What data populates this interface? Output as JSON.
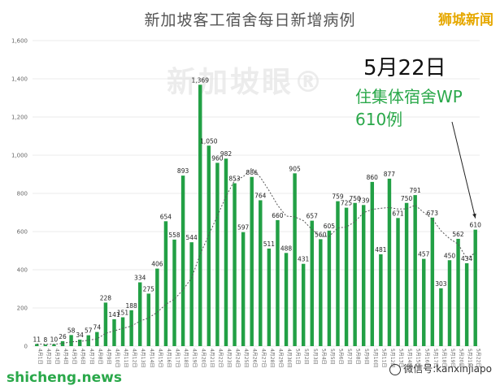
{
  "title": "新加坡客工宿舍每日新增病例",
  "brand": "狮城新闻",
  "watermark": "新加坡眼®",
  "annotation": {
    "date": "5月22日",
    "line1": "住集体宿舍WP",
    "line2": "610例"
  },
  "footer": {
    "left": "shicheng.news",
    "right": "微信号:kanxinjiapo"
  },
  "colors": {
    "bar": "#22a045",
    "trend": "#555555",
    "accent_green": "#2aa84a",
    "brand_gold": "#e6a800"
  },
  "chart_data": {
    "type": "bar",
    "ylim": [
      0,
      1600
    ],
    "yticks": [
      "0",
      "200",
      "400",
      "600",
      "800",
      "1,000",
      "1,200",
      "1,400",
      "1,600"
    ],
    "grid": true,
    "categories": [
      "4月1日",
      "4月2日",
      "4月3日",
      "4月4日",
      "4月5日",
      "4月6日",
      "4月7日",
      "4月8日",
      "4月9日",
      "4月10日",
      "4月11日",
      "4月12日",
      "4月13日",
      "4月14日",
      "4月15日",
      "4月16日",
      "4月17日",
      "4月18日",
      "4月19日",
      "4月20日",
      "4月21日",
      "4月22日",
      "4月23日",
      "4月24日",
      "4月25日",
      "4月26日",
      "4月27日",
      "4月28日",
      "4月29日",
      "4月30日",
      "5月1日",
      "5月2日",
      "5月3日",
      "5月4日",
      "5月5日",
      "5月6日",
      "5月7日",
      "5月8日",
      "5月9日",
      "5月10日",
      "5月11日",
      "5月12日",
      "5月13日",
      "5月14日",
      "5月15日",
      "5月16日",
      "5月17日",
      "5月18日",
      "5月19日",
      "5月20日",
      "5月21日",
      "5月22日"
    ],
    "values": [
      11,
      8,
      10,
      26,
      58,
      34,
      57,
      74,
      228,
      141,
      151,
      188,
      334,
      275,
      406,
      654,
      558,
      893,
      544,
      1369,
      1050,
      960,
      982,
      853,
      597,
      886,
      764,
      511,
      660,
      488,
      905,
      431,
      657,
      560,
      605,
      759,
      725,
      750,
      739,
      860,
      481,
      877,
      671,
      750,
      791,
      457,
      673,
      303,
      450,
      562,
      434,
      610
    ],
    "labels": [
      "11",
      "8",
      "10",
      "26",
      "58",
      "34",
      "57",
      "74",
      "228",
      "141",
      "151",
      "188",
      "334",
      "275",
      "406",
      "654",
      "558",
      "893",
      "544",
      "1,369",
      "1,050",
      "960",
      "982",
      "853",
      "597",
      "886",
      "764",
      "511",
      "660",
      "488",
      "905",
      "431",
      "657",
      "560",
      "605",
      "759",
      "725",
      "750",
      "739",
      "860",
      "481",
      "877",
      "671",
      "750",
      "791",
      "457",
      "673",
      "303",
      "450",
      "562",
      "434",
      "610"
    ],
    "trend": [
      11,
      10,
      10,
      14,
      23,
      24,
      31,
      38,
      67,
      80,
      93,
      105,
      131,
      148,
      177,
      219,
      246,
      295,
      357,
      482,
      582,
      682,
      784,
      868,
      887,
      932,
      884,
      815,
      738,
      681,
      677,
      657,
      611,
      574,
      575,
      619,
      624,
      652,
      699,
      716,
      722,
      726,
      718,
      719,
      738,
      700,
      666,
      604,
      563,
      534,
      459,
      489
    ]
  }
}
